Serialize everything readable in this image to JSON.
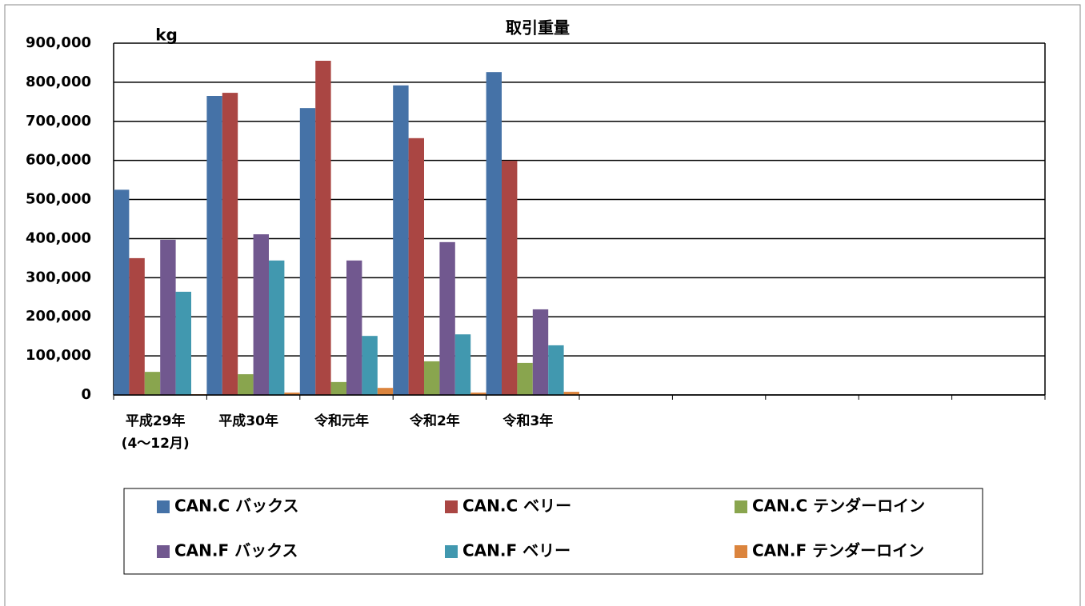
{
  "chart_data": {
    "type": "bar",
    "title": "取引重量",
    "y_unit_label": "kg",
    "categories": [
      "平成29年\n(4～12月)",
      "平成30年",
      "令和元年",
      "令和2年",
      "令和3年",
      null,
      null,
      null,
      null,
      null
    ],
    "series": [
      {
        "name": "CAN.C バックス",
        "color": "#4572a7",
        "values": [
          525000,
          765000,
          734000,
          792000,
          826000,
          null,
          null,
          null,
          null,
          null
        ]
      },
      {
        "name": "CAN.C ベリー",
        "color": "#aa4643",
        "values": [
          350000,
          773000,
          855000,
          657000,
          599000,
          null,
          null,
          null,
          null,
          null
        ]
      },
      {
        "name": "CAN.C テンダーロイン",
        "color": "#89a54e",
        "values": [
          59000,
          53000,
          33000,
          86000,
          82000,
          null,
          null,
          null,
          null,
          null
        ]
      },
      {
        "name": "CAN.F バックス",
        "color": "#71588f",
        "values": [
          397000,
          411000,
          344000,
          391000,
          219000,
          null,
          null,
          null,
          null,
          null
        ]
      },
      {
        "name": "CAN.F ベリー",
        "color": "#4198af",
        "values": [
          264000,
          344000,
          151000,
          155000,
          127000,
          null,
          null,
          null,
          null,
          null
        ]
      },
      {
        "name": "CAN.F テンダーロイン",
        "color": "#db843d",
        "values": [
          2000,
          6000,
          18000,
          6000,
          8000,
          null,
          null,
          null,
          null,
          null
        ]
      }
    ],
    "ylim": [
      0,
      900000
    ],
    "yticks": [
      0,
      {
        "value": 100000,
        "label": "100,000"
      },
      {
        "value": 200000,
        "label": "200,000"
      },
      {
        "value": 300000,
        "label": "300,000"
      },
      {
        "value": 400000,
        "label": "400,000"
      },
      {
        "value": 500000,
        "label": "500,000"
      },
      {
        "value": 600000,
        "label": "600,000"
      },
      {
        "value": 700000,
        "label": "700,000"
      },
      {
        "value": 800000,
        "label": "800,000"
      },
      {
        "value": 900000,
        "label": "900,000"
      }
    ],
    "grid": true,
    "legend": "bottom"
  }
}
